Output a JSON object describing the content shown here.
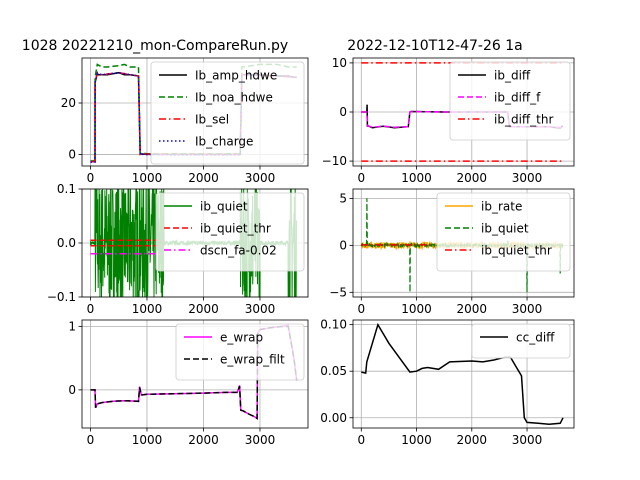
{
  "figure": {
    "title_left": "1028 20221210_mon-CompareRun.py",
    "title_right": "2022-12-10T12-47-26 1a"
  },
  "chart_data": [
    {
      "type": "line",
      "xlim": [
        -150,
        3850
      ],
      "ylim": [
        -4.5,
        37.5
      ],
      "xticks": [
        0,
        1000,
        2000,
        3000
      ],
      "yticks": [
        0,
        20
      ],
      "grid": true,
      "legend_position": "top-right",
      "series": [
        {
          "name": "Ib_amp_hdwe",
          "color": "#000000",
          "dash": "solid",
          "x": [
            0,
            80,
            82,
            120,
            130,
            200,
            300,
            500,
            600,
            700,
            850,
            880,
            900,
            1000,
            1200,
            1500,
            2000,
            2500,
            2650,
            2680,
            2700,
            3000,
            3300,
            3500,
            3600,
            3650
          ],
          "y": [
            -2.8,
            -2.8,
            28,
            31.5,
            31,
            31,
            31,
            31.8,
            31,
            31,
            30.5,
            0,
            0.2,
            0,
            0,
            0,
            0,
            0,
            0,
            31,
            31,
            31,
            30.5,
            30.5,
            30,
            30
          ]
        },
        {
          "name": "Ib_noa_hdwe",
          "color": "#008000",
          "dash": "dashed",
          "x": [
            0,
            80,
            82,
            120,
            200,
            300,
            500,
            600,
            700,
            850,
            880,
            900,
            1000,
            1500,
            2000,
            2500,
            2650,
            2680,
            2700,
            3000,
            3300,
            3500,
            3600,
            3650
          ],
          "y": [
            -2.5,
            -2.5,
            30,
            35,
            34,
            34,
            34.5,
            35,
            34,
            34,
            0.5,
            0.5,
            0.3,
            0.3,
            0.3,
            0.3,
            0.3,
            34,
            34,
            35,
            35,
            34,
            34,
            34
          ]
        },
        {
          "name": "Ib_sel",
          "color": "#ff0000",
          "dash": "dashdot",
          "x": [
            0,
            80,
            82,
            120,
            200,
            500,
            850,
            880,
            900,
            1500,
            2650,
            2680,
            2700,
            3300,
            3650
          ],
          "y": [
            -2.8,
            -2.8,
            28,
            31.5,
            31,
            31.8,
            30.5,
            0,
            0.2,
            0,
            0,
            31,
            31,
            30.5,
            30
          ]
        },
        {
          "name": "Ib_charge",
          "color": "#0000ff",
          "dash": "dotted",
          "x": [
            0,
            80,
            82,
            120,
            200,
            500,
            850,
            880,
            900,
            1500,
            2650,
            2680,
            2700,
            3300,
            3650
          ],
          "y": [
            -3,
            -3,
            28,
            31.5,
            31,
            31.8,
            30.5,
            -0.2,
            0,
            -0.2,
            -0.2,
            31,
            31,
            30.5,
            30
          ]
        }
      ]
    },
    {
      "type": "line",
      "xlim": [
        -150,
        3850
      ],
      "ylim": [
        -11,
        11
      ],
      "xticks": [
        0,
        1000,
        2000,
        3000
      ],
      "yticks": [
        -10,
        0,
        10
      ],
      "grid": true,
      "legend_position": "top-right",
      "series": [
        {
          "name": "ib_diff",
          "color": "#000000",
          "dash": "solid",
          "x": [
            0,
            100,
            105,
            110,
            115,
            200,
            400,
            600,
            850,
            880,
            900,
            1500,
            2000,
            2600,
            2650,
            2680,
            3000,
            3400,
            3600,
            3650
          ],
          "y": [
            0,
            0,
            1.5,
            -3,
            -2.8,
            -3.2,
            -2.9,
            -3.2,
            -3,
            0,
            0.1,
            0,
            0,
            0,
            0,
            -3,
            -3,
            -3,
            -3.3,
            -2.8
          ]
        },
        {
          "name": "ib_diff_f",
          "color": "#ff00ff",
          "dash": "dashed",
          "x": [
            0,
            100,
            115,
            200,
            400,
            600,
            850,
            880,
            900,
            1500,
            2000,
            2650,
            2680,
            3000,
            3400,
            3600,
            3650
          ],
          "y": [
            0,
            0,
            -2.8,
            -3.1,
            -2.9,
            -3.1,
            -3,
            0,
            0.1,
            0,
            0,
            0,
            -3,
            -3,
            -3,
            -3.2,
            -2.8
          ]
        },
        {
          "name": "ib_diff_thr",
          "color": "#ff0000",
          "dash": "dashdot",
          "x": [
            0,
            3650
          ],
          "y": [
            10,
            10
          ],
          "x2": [
            0,
            3650
          ],
          "y2": [
            -10,
            -10
          ]
        }
      ]
    },
    {
      "type": "line",
      "xlim": [
        -150,
        3850
      ],
      "ylim": [
        -0.1,
        0.1
      ],
      "xticks": [
        0,
        1000,
        2000,
        3000
      ],
      "yticks": [
        -0.1,
        0.0,
        0.1
      ],
      "grid": true,
      "legend_position": "top-right",
      "series": [
        {
          "name": "ib_quiet",
          "color": "#008000",
          "dash": "solid",
          "noise_regions": [
            [
              80,
              1300,
              0.1
            ],
            [
              2650,
              3000,
              0.1
            ],
            [
              3500,
              3650,
              0.1
            ]
          ],
          "baseline": 0
        },
        {
          "name": "ib_quiet_thr",
          "color": "#ff0000",
          "dash": "dashed",
          "x": [
            0,
            1300
          ],
          "y": [
            0.005,
            0.005
          ],
          "x2": [
            0,
            1300
          ],
          "y2": [
            -0.005,
            -0.005
          ]
        },
        {
          "name": "dscn_fa-0.02",
          "color": "#ff00ff",
          "dash": "dashdot",
          "x": [
            0,
            1300
          ],
          "y": [
            -0.02,
            -0.02
          ]
        }
      ]
    },
    {
      "type": "line",
      "xlim": [
        -150,
        3850
      ],
      "ylim": [
        -5.5,
        6
      ],
      "xticks": [
        0,
        1000,
        2000,
        3000
      ],
      "yticks": [
        -5,
        0,
        5
      ],
      "grid": true,
      "legend_position": "top-right",
      "series": [
        {
          "name": "ib_rate",
          "color": "#ffa500",
          "dash": "solid",
          "baseline": 0
        },
        {
          "name": "ib_quiet",
          "color": "#008000",
          "dash": "dashed",
          "baseline": 0,
          "spikes": [
            [
              100,
              5
            ],
            [
              880,
              -5
            ],
            [
              2650,
              0.5
            ],
            [
              3000,
              -5
            ],
            [
              3600,
              -3
            ]
          ]
        },
        {
          "name": "ib_quiet_thr",
          "color": "#ff0000",
          "dash": "dashdot",
          "x": [
            0,
            1300
          ],
          "y": [
            0.05,
            0.05
          ]
        }
      ]
    },
    {
      "type": "line",
      "xlim": [
        -150,
        3850
      ],
      "ylim": [
        -0.6,
        1.1
      ],
      "xticks": [
        0,
        1000,
        2000,
        3000
      ],
      "yticks": [
        0,
        1
      ],
      "grid": true,
      "legend_position": "top-right",
      "series": [
        {
          "name": "e_wrap",
          "color": "#ff00ff",
          "dash": "solid",
          "x": [
            0,
            80,
            90,
            120,
            200,
            400,
            600,
            850,
            870,
            900,
            1000,
            1500,
            2000,
            2400,
            2600,
            2640,
            2660,
            2700,
            2800,
            2900,
            2950,
            2960,
            3000,
            3200,
            3400,
            3500,
            3600,
            3650
          ],
          "y": [
            0,
            0,
            -0.28,
            -0.22,
            -0.2,
            -0.18,
            -0.17,
            -0.18,
            0.05,
            -0.08,
            -0.07,
            -0.06,
            -0.05,
            -0.04,
            -0.04,
            0.07,
            -0.32,
            -0.33,
            -0.38,
            -0.42,
            -0.45,
            0.9,
            0.95,
            0.98,
            1.0,
            1.02,
            0.5,
            0.15
          ]
        },
        {
          "name": "e_wrap_filt",
          "color": "#000000",
          "dash": "dashed",
          "x": [
            0,
            80,
            90,
            120,
            200,
            400,
            600,
            850,
            870,
            900,
            1000,
            1500,
            2000,
            2400,
            2600,
            2640,
            2660,
            2700,
            2800,
            2900,
            2950,
            2960,
            3000,
            3200,
            3400,
            3500,
            3600,
            3650
          ],
          "y": [
            0,
            0,
            -0.28,
            -0.22,
            -0.2,
            -0.18,
            -0.17,
            -0.18,
            0.04,
            -0.08,
            -0.07,
            -0.06,
            -0.05,
            -0.04,
            -0.04,
            0.06,
            -0.32,
            -0.33,
            -0.38,
            -0.42,
            -0.45,
            0.88,
            0.95,
            0.98,
            1.0,
            1.0,
            0.5,
            0.15
          ]
        }
      ]
    },
    {
      "type": "line",
      "xlim": [
        -150,
        3850
      ],
      "ylim": [
        -0.011,
        0.105
      ],
      "xticks": [
        0,
        1000,
        2000,
        3000
      ],
      "yticks": [
        0.0,
        0.05,
        0.1
      ],
      "grid": true,
      "legend_position": "top-right",
      "series": [
        {
          "name": "cc_diff",
          "color": "#000000",
          "dash": "solid",
          "x": [
            0,
            80,
            100,
            300,
            500,
            880,
            1000,
            1100,
            1200,
            1400,
            1600,
            2000,
            2200,
            2400,
            2600,
            2700,
            2800,
            2900,
            2950,
            3000,
            3200,
            3400,
            3600,
            3650
          ],
          "y": [
            0.049,
            0.048,
            0.06,
            0.1,
            0.08,
            0.049,
            0.05,
            0.053,
            0.054,
            0.052,
            0.06,
            0.061,
            0.06,
            0.062,
            0.065,
            0.065,
            0.055,
            0.045,
            0.0,
            -0.005,
            -0.006,
            -0.007,
            -0.006,
            0.0
          ]
        }
      ]
    }
  ]
}
